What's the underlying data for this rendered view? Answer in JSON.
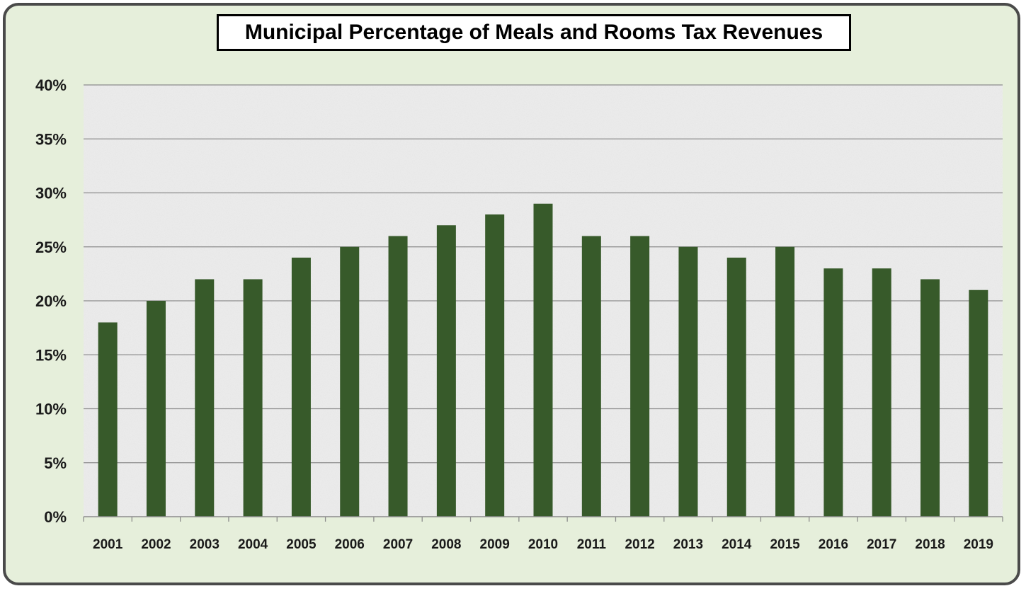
{
  "chart_data": {
    "type": "bar",
    "title": "Municipal Percentage of Meals and Rooms Tax Revenues",
    "xlabel": "",
    "ylabel": "",
    "categories": [
      "2001",
      "2002",
      "2003",
      "2004",
      "2005",
      "2006",
      "2007",
      "2008",
      "2009",
      "2010",
      "2011",
      "2012",
      "2013",
      "2014",
      "2015",
      "2016",
      "2017",
      "2018",
      "2019"
    ],
    "values": [
      18,
      20,
      22,
      22,
      24,
      25,
      26,
      27,
      28,
      29,
      26,
      26,
      25,
      24,
      25,
      23,
      23,
      22,
      21
    ],
    "value_unit": "%",
    "ylim": [
      0,
      40
    ],
    "yticks": [
      "0%",
      "5%",
      "10%",
      "15%",
      "20%",
      "25%",
      "30%",
      "35%",
      "40%"
    ],
    "grid": true,
    "legend": "none",
    "colors": {
      "bar": "#375a2a",
      "background": "#e6efdb",
      "plot_area": "#ececec",
      "gridline": "#8c8c8c",
      "border": "#4a4a4a"
    }
  }
}
